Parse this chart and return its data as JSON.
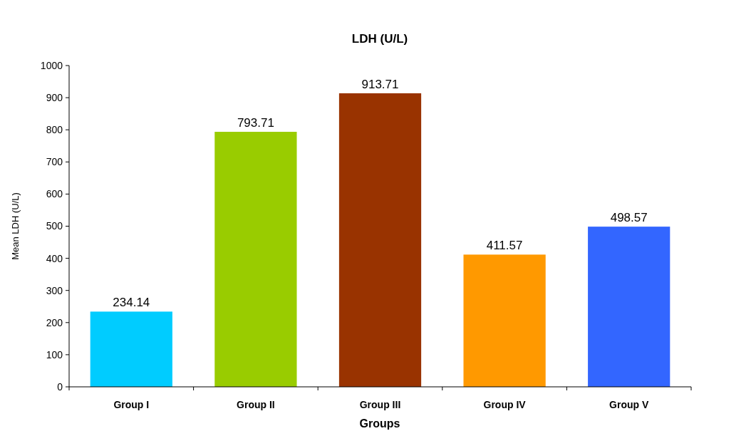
{
  "chart_data": {
    "type": "bar",
    "title": "LDH (U/L)",
    "xlabel": "Groups",
    "ylabel": "Mean LDH (U/L)",
    "categories": [
      "Group I",
      "Group II",
      "Group III",
      "Group IV",
      "Group V"
    ],
    "values": [
      234.14,
      793.71,
      913.71,
      411.57,
      498.57
    ],
    "colors": [
      "#00ccff",
      "#99cc00",
      "#993300",
      "#ff9900",
      "#3366ff"
    ],
    "ylim": [
      0,
      1000
    ],
    "yticks": [
      0,
      100,
      200,
      300,
      400,
      500,
      600,
      700,
      800,
      900,
      1000
    ],
    "data_labels": true
  }
}
